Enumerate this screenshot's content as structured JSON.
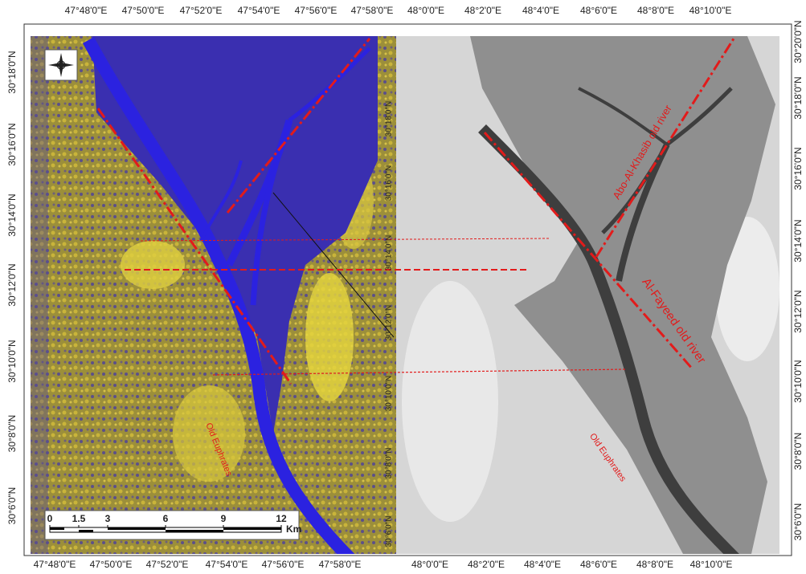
{
  "top_labels": [
    "47°48'0\"E",
    "47°50'0\"E",
    "47°52'0\"E",
    "47°54'0\"E",
    "47°56'0\"E",
    "47°58'0\"E",
    "48°0'0\"E",
    "48°2'0\"E",
    "48°4'0\"E",
    "48°6'0\"E",
    "48°8'0\"E",
    "48°10'0\"E"
  ],
  "bottom_labels": [
    "47°48'0\"E",
    "47°50'0\"E",
    "47°52'0\"E",
    "47°54'0\"E",
    "47°56'0\"E",
    "47°58'0\"E",
    "48°0'0\"E",
    "48°2'0\"E",
    "48°4'0\"E",
    "48°6'0\"E",
    "48°8'0\"E",
    "48°10'0\"E"
  ],
  "left_labels": [
    "30°18'0\"N",
    "30°16'0\"N",
    "30°14'0\"N",
    "30°12'0\"N",
    "30°10'0\"N",
    "30°8'0\"N",
    "30°6'0\"N"
  ],
  "middle_labels": [
    "30°18'0\"N",
    "30°16'0\"N",
    "30°14'0\"N",
    "30°12'0\"N",
    "30°10'0\"N",
    "30°8'0\"N",
    "30°6'0\"N"
  ],
  "right_labels": [
    "30°20'0\"N",
    "30°18'0\"N",
    "30°16'0\"N",
    "30°14'0\"N",
    "30°12'0\"N",
    "30°10'0\"N",
    "30°8'0\"N",
    "30°6'0\"N"
  ],
  "scale_bar": {
    "ticks": [
      0,
      1.5,
      3,
      6,
      9,
      12
    ],
    "unit": "Km"
  },
  "annotations": {
    "abo_al_khasib": "Abo-Al-Khasib old river",
    "al_fayeed": "Al-Fayeed old river",
    "old_euphrates_left": "Old Euphrates",
    "old_euphrates_right": "Old Euphrates"
  }
}
